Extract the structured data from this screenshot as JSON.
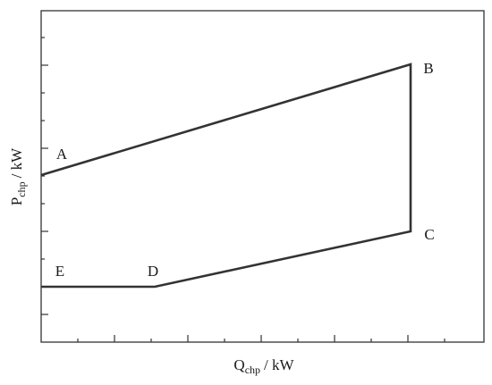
{
  "x_axis": {
    "symbol": "Q",
    "subscript": "chp",
    "unit": "/ kW"
  },
  "y_axis": {
    "symbol": "P",
    "subscript": "chp",
    "unit": "/ kW"
  },
  "points": [
    {
      "label": "A"
    },
    {
      "label": "B"
    },
    {
      "label": "C"
    },
    {
      "label": "D"
    },
    {
      "label": "E"
    }
  ]
}
